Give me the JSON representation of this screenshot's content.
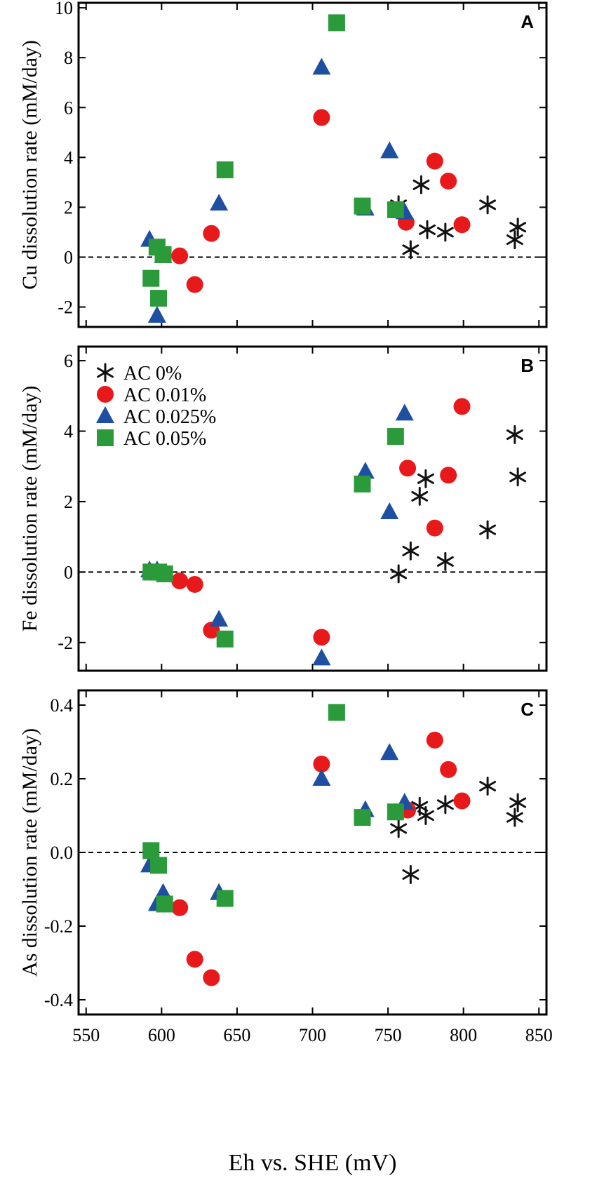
{
  "chart_data": {
    "type": "scatter",
    "xlabel": "Eh vs. SHE (mV)",
    "xlim": [
      545,
      855
    ],
    "xticks": [
      550,
      600,
      650,
      700,
      750,
      800,
      850
    ],
    "legend": {
      "placement": "top-left of panel B",
      "entries": [
        "AC 0%",
        "AC 0.01%",
        "AC 0.025%",
        "AC 0.05%"
      ]
    },
    "series_style": [
      {
        "name": "AC 0%",
        "marker": "asterisk",
        "color": "#111111"
      },
      {
        "name": "AC 0.01%",
        "marker": "circle",
        "color": "#e8191b"
      },
      {
        "name": "AC 0.025%",
        "marker": "triangle",
        "color": "#1f4fa1"
      },
      {
        "name": "AC 0.05%",
        "marker": "square",
        "color": "#2a9a3a"
      }
    ],
    "panels": [
      {
        "letter": "A",
        "ylabel": "Cu dissolution rate (mM/day)",
        "ylim": [
          -2.8,
          10.2
        ],
        "yticks": [
          -2,
          0,
          2,
          4,
          6,
          8,
          10
        ],
        "ytick_labels": [
          "-2",
          "0",
          "2",
          "4",
          "6",
          "8",
          "10"
        ],
        "zero_line": true,
        "series": [
          {
            "name": "AC 0%",
            "points": [
              [
                757,
                2.1
              ],
              [
                772,
                2.9
              ],
              [
                765,
                0.3
              ],
              [
                776,
                1.1
              ],
              [
                788,
                1.0
              ],
              [
                816,
                2.1
              ],
              [
                836,
                1.2
              ],
              [
                834,
                0.7
              ]
            ]
          },
          {
            "name": "AC 0.01%",
            "points": [
              [
                612,
                0.05
              ],
              [
                622,
                -1.1
              ],
              [
                633,
                0.95
              ],
              [
                706,
                5.6
              ],
              [
                762,
                1.4
              ],
              [
                781,
                3.85
              ],
              [
                790,
                3.05
              ],
              [
                799,
                1.3
              ]
            ]
          },
          {
            "name": "AC 0.025%",
            "points": [
              [
                592,
                0.7
              ],
              [
                597,
                -2.35
              ],
              [
                601,
                0.05
              ],
              [
                638,
                2.15
              ],
              [
                706,
                7.6
              ],
              [
                735,
                1.95
              ],
              [
                751,
                4.25
              ],
              [
                761,
                1.8
              ]
            ]
          },
          {
            "name": "AC 0.05%",
            "points": [
              [
                593,
                -0.85
              ],
              [
                597,
                0.4
              ],
              [
                598,
                -1.65
              ],
              [
                601,
                0.1
              ],
              [
                642,
                3.5
              ],
              [
                716,
                9.4
              ],
              [
                733,
                2.05
              ],
              [
                755,
                1.9
              ]
            ]
          }
        ]
      },
      {
        "letter": "B",
        "ylabel": "Fe dissolution rate (mM/day)",
        "ylim": [
          -2.8,
          6.4
        ],
        "yticks": [
          -2,
          0,
          2,
          4,
          6
        ],
        "ytick_labels": [
          "-2",
          "0",
          "2",
          "4",
          "6"
        ],
        "zero_line": true,
        "series": [
          {
            "name": "AC 0%",
            "points": [
              [
                757,
                -0.05
              ],
              [
                765,
                0.6
              ],
              [
                771,
                2.15
              ],
              [
                775,
                2.65
              ],
              [
                788,
                0.3
              ],
              [
                816,
                1.2
              ],
              [
                834,
                3.9
              ],
              [
                836,
                2.7
              ]
            ]
          },
          {
            "name": "AC 0.01%",
            "points": [
              [
                612,
                -0.25
              ],
              [
                622,
                -0.35
              ],
              [
                633,
                -1.65
              ],
              [
                706,
                -1.85
              ],
              [
                763,
                2.95
              ],
              [
                781,
                1.25
              ],
              [
                790,
                2.75
              ],
              [
                799,
                4.7
              ]
            ]
          },
          {
            "name": "AC 0.025%",
            "points": [
              [
                592,
                0.05
              ],
              [
                597,
                0.05
              ],
              [
                638,
                -1.35
              ],
              [
                706,
                -2.45
              ],
              [
                735,
                2.85
              ],
              [
                751,
                1.7
              ],
              [
                761,
                4.5
              ]
            ]
          },
          {
            "name": "AC 0.05%",
            "points": [
              [
                593,
                0.0
              ],
              [
                598,
                0.0
              ],
              [
                602,
                -0.05
              ],
              [
                642,
                -1.9
              ],
              [
                733,
                2.5
              ],
              [
                755,
                3.85
              ]
            ]
          }
        ]
      },
      {
        "letter": "C",
        "ylabel": "As dissolution rate (mM/day)",
        "ylim": [
          -0.44,
          0.44
        ],
        "yticks": [
          -0.4,
          -0.2,
          0.0,
          0.2,
          0.4
        ],
        "ytick_labels": [
          "-0.4",
          "-0.2",
          "0.0",
          "0.2",
          "0.4"
        ],
        "zero_line": true,
        "series": [
          {
            "name": "AC 0%",
            "points": [
              [
                757,
                0.065
              ],
              [
                765,
                -0.06
              ],
              [
                771,
                0.125
              ],
              [
                775,
                0.1
              ],
              [
                788,
                0.13
              ],
              [
                816,
                0.18
              ],
              [
                834,
                0.095
              ],
              [
                836,
                0.135
              ]
            ]
          },
          {
            "name": "AC 0.01%",
            "points": [
              [
                612,
                -0.15
              ],
              [
                622,
                -0.29
              ],
              [
                633,
                -0.34
              ],
              [
                706,
                0.24
              ],
              [
                763,
                0.115
              ],
              [
                781,
                0.305
              ],
              [
                790,
                0.225
              ],
              [
                799,
                0.14
              ]
            ]
          },
          {
            "name": "AC 0.025%",
            "points": [
              [
                592,
                -0.035
              ],
              [
                597,
                -0.14
              ],
              [
                601,
                -0.11
              ],
              [
                638,
                -0.11
              ],
              [
                706,
                0.2
              ],
              [
                735,
                0.115
              ],
              [
                751,
                0.27
              ],
              [
                761,
                0.135
              ]
            ]
          },
          {
            "name": "AC 0.05%",
            "points": [
              [
                593,
                0.005
              ],
              [
                598,
                -0.035
              ],
              [
                602,
                -0.14
              ],
              [
                642,
                -0.125
              ],
              [
                716,
                0.38
              ],
              [
                733,
                0.095
              ],
              [
                755,
                0.11
              ]
            ]
          }
        ]
      }
    ]
  }
}
